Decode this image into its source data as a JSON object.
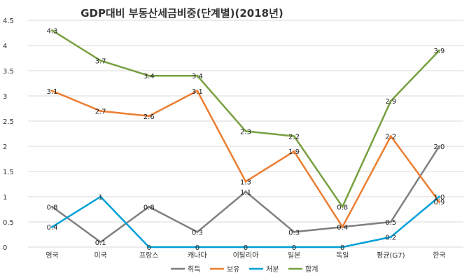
{
  "chart_data": {
    "type": "line",
    "title": "GDP대비 부동산세금비중(단계별)(2018년)",
    "xlabel": "",
    "ylabel": "",
    "categories": [
      "영국",
      "미국",
      "프랑스",
      "캐나다",
      "이탈리아",
      "일본",
      "독일",
      "평균(G7)",
      "한국"
    ],
    "ylim": [
      0,
      4.5
    ],
    "yticks": [
      "0",
      "0.5",
      "1",
      "1.5",
      "2",
      "2.5",
      "3",
      "3.5",
      "4",
      "4.5"
    ],
    "grid": true,
    "legend_position": "bottom",
    "series": [
      {
        "name": "취득",
        "color": "#7f7f7f",
        "values": [
          0.8,
          0.1,
          0.8,
          0.3,
          1.1,
          0.3,
          0.4,
          0.5,
          2.0
        ],
        "labels": [
          "0.8",
          "0.1",
          "0.8",
          "0.3",
          "1.1",
          "0.3",
          "",
          "0.5",
          "2.0"
        ]
      },
      {
        "name": "보유",
        "color": "#ed7d31",
        "values": [
          3.1,
          2.7,
          2.6,
          3.1,
          1.3,
          1.9,
          0.4,
          2.2,
          0.9
        ],
        "labels": [
          "3.1",
          "2.7",
          "2.6",
          "3.1",
          "1.3",
          "1.9",
          "0.4",
          "2.2",
          "0.9"
        ]
      },
      {
        "name": "처분",
        "color": "#00a0d8",
        "values": [
          0.4,
          1,
          0,
          0,
          0,
          0,
          0,
          0.2,
          1.0
        ],
        "labels": [
          "0.4",
          "1",
          "0",
          "0",
          "0",
          "0",
          "0",
          "0.2",
          "1.0"
        ]
      },
      {
        "name": "합계",
        "color": "#77a040",
        "values": [
          4.3,
          3.7,
          3.4,
          3.4,
          2.3,
          2.2,
          0.8,
          2.9,
          3.9
        ],
        "labels": [
          "4.3",
          "3.7",
          "3.4",
          "3.4",
          "2.3",
          "2.2",
          "0.8",
          "2.9",
          "3.9"
        ]
      }
    ]
  }
}
